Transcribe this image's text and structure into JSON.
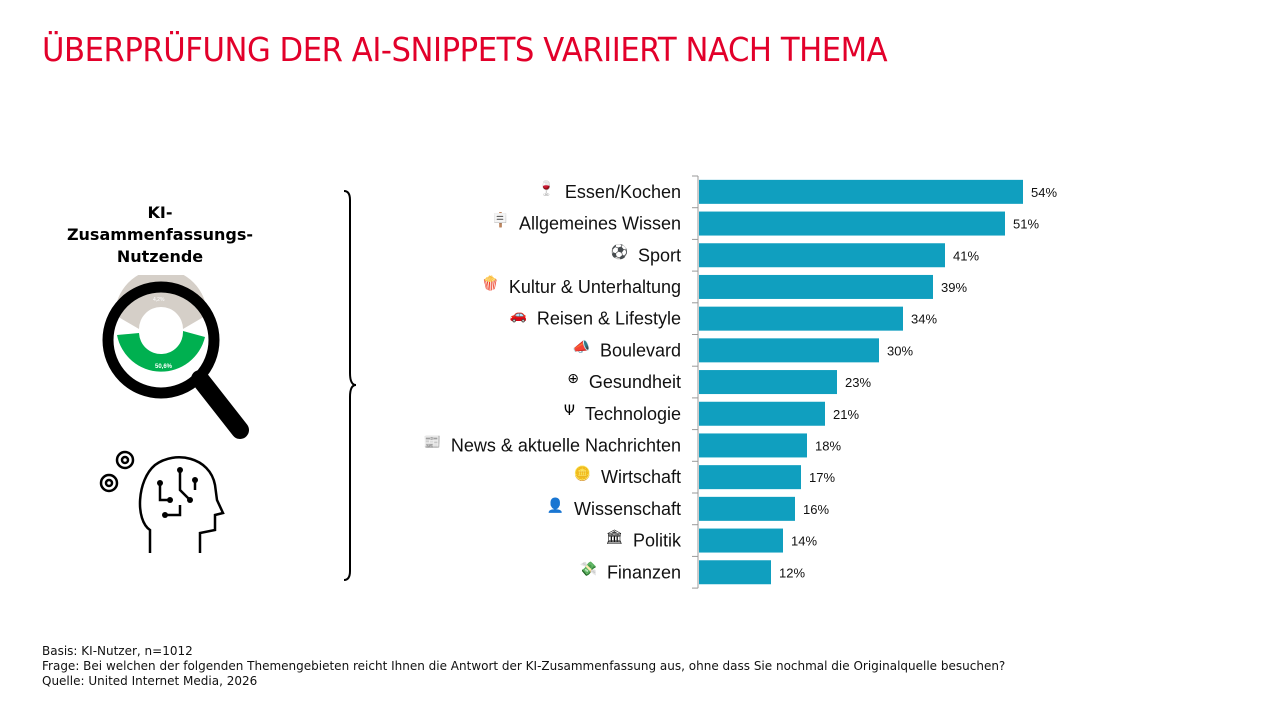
{
  "title": "ÜBERPRÜFUNG DER AI-SNIPPETS VARIIERT NACH THEMA",
  "side_label": "KI-\nZusammenfassungs-\nNutzende",
  "donut_labels": [
    "50,6%",
    "4,2%"
  ],
  "colors": {
    "title": "#e2002a",
    "bar": "#109fbf",
    "donut_green": "#00b050",
    "donut_grey": "#d5cfc8"
  },
  "footer": {
    "basis": "Basis: KI-Nutzer, n=1012",
    "frage": "Frage: Bei welchen der folgenden Themengebieten reicht Ihnen die Antwort der KI-Zusammenfassung aus, ohne dass Sie nochmal die Originalquelle besuchen?",
    "quelle": "Quelle: United Internet Media, 2026"
  },
  "chart_data": {
    "type": "bar",
    "orientation": "horizontal",
    "categories": [
      "Essen/Kochen",
      "Allgemeines Wissen",
      "Sport",
      "Kultur & Unterhaltung",
      "Reisen & Lifestyle",
      "Boulevard",
      "Gesundheit",
      "Technologie",
      "News & aktuelle Nachrichten",
      "Wirtschaft",
      "Wissenschaft",
      "Politik",
      "Finanzen"
    ],
    "icons": [
      "food-icon",
      "knowledge-icon",
      "soccer-ball-icon",
      "popcorn-icon",
      "car-icon",
      "megaphone-icon",
      "medical-cross-icon",
      "usb-icon",
      "newspaper-icon",
      "coins-icon",
      "head-icon",
      "government-building-icon",
      "money-icon"
    ],
    "icon_glyphs": [
      "🍷",
      "🪧",
      "⚽",
      "🍿",
      "🚗",
      "📣",
      "⊕",
      "Ψ",
      "📰",
      "🪙",
      "👤",
      "🏛",
      "💸"
    ],
    "values": [
      54,
      51,
      41,
      39,
      34,
      30,
      23,
      21,
      18,
      17,
      16,
      14,
      12
    ],
    "value_labels": [
      "54%",
      "51%",
      "41%",
      "39%",
      "34%",
      "30%",
      "23%",
      "21%",
      "18%",
      "17%",
      "16%",
      "14%",
      "12%"
    ],
    "xlim": [
      0,
      100
    ],
    "grid": false
  }
}
